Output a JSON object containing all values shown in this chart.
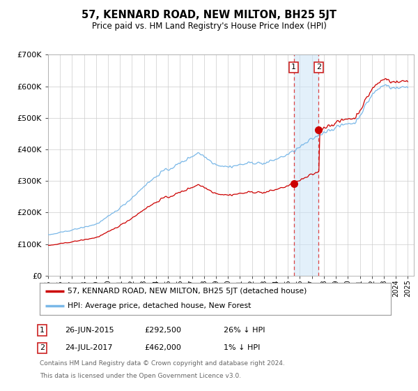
{
  "title": "57, KENNARD ROAD, NEW MILTON, BH25 5JT",
  "subtitle": "Price paid vs. HM Land Registry's House Price Index (HPI)",
  "hpi_color": "#7ab8e8",
  "price_color": "#cc0000",
  "sale1_date_num": 2015.49,
  "sale2_date_num": 2017.56,
  "sale1_price": 292500,
  "sale2_price": 462000,
  "legend_price_label": "57, KENNARD ROAD, NEW MILTON, BH25 5JT (detached house)",
  "legend_hpi_label": "HPI: Average price, detached house, New Forest",
  "ann1_date": "26-JUN-2015",
  "ann1_price": "£292,500",
  "ann1_hpi": "26% ↓ HPI",
  "ann2_date": "24-JUL-2017",
  "ann2_price": "£462,000",
  "ann2_hpi": "1% ↓ HPI",
  "footer_line1": "Contains HM Land Registry data © Crown copyright and database right 2024.",
  "footer_line2": "This data is licensed under the Open Government Licence v3.0.",
  "ylim": [
    0,
    700000
  ],
  "yticks": [
    0,
    100000,
    200000,
    300000,
    400000,
    500000,
    600000,
    700000
  ],
  "xlim_start": 1995.0,
  "xlim_end": 2025.5,
  "background_color": "#ffffff",
  "grid_color": "#cccccc",
  "shade_color": "#cce4f7"
}
